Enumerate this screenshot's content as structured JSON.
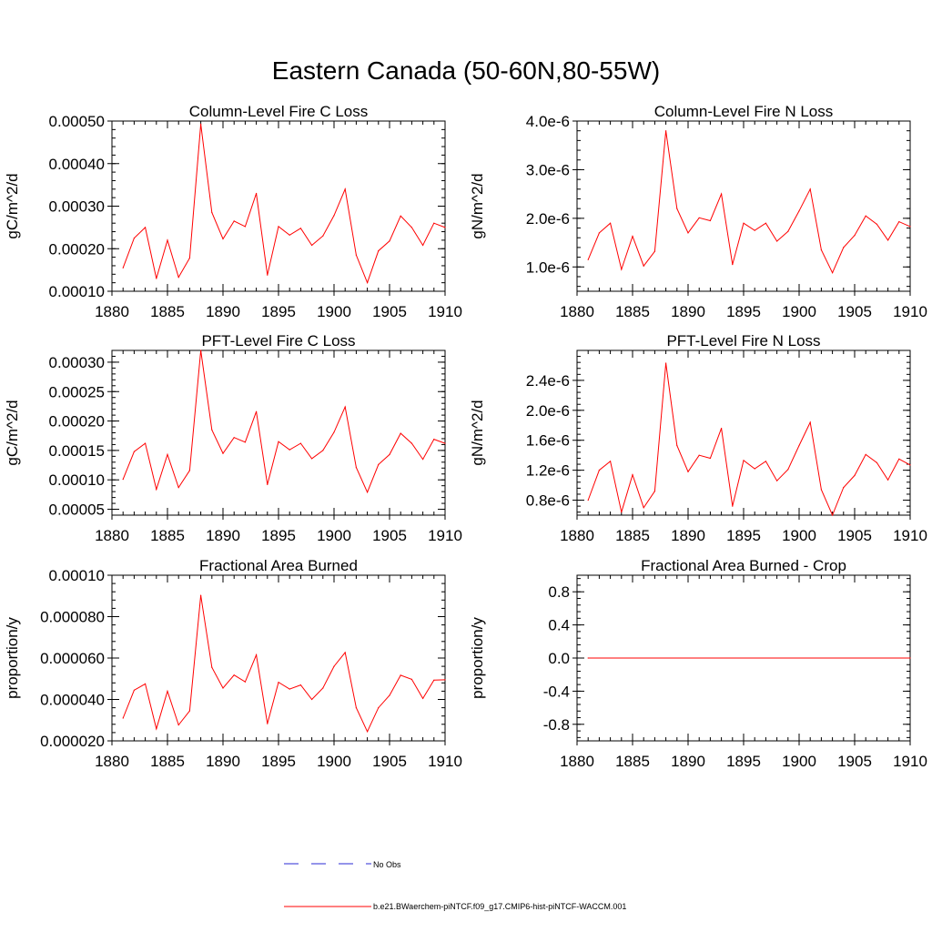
{
  "figure": {
    "title": "Eastern Canada (50-60N,80-55W)"
  },
  "colors": {
    "model": "#ff0000",
    "obs": "#2a2ad4",
    "axes": "#000000"
  },
  "legend": {
    "obs_label": "No Obs",
    "model_label": "b.e21.BWaerchem-piNTCF.f09_g17.CMIP6-hist-piNTCF-WACCM.001"
  },
  "chart_data": [
    {
      "type": "line",
      "title": "Column-Level Fire C Loss",
      "ylabel": "gC/m^2/d",
      "xlim": [
        1880,
        1910
      ],
      "ylim": [
        0.0001,
        0.0005
      ],
      "xticks": [
        1880,
        1885,
        1890,
        1895,
        1900,
        1905,
        1910
      ],
      "xtick_labels": [
        "1880",
        "1885",
        "1890",
        "1895",
        "1900",
        "1905",
        "1910"
      ],
      "yticks": [
        0.0001,
        0.0002,
        0.0003,
        0.0004,
        0.0005
      ],
      "ytick_labels": [
        "0.00010",
        "0.00020",
        "0.00030",
        "0.00040",
        "0.00050"
      ],
      "series": [
        {
          "x": [
            1881,
            1882,
            1883,
            1884,
            1885,
            1886,
            1887,
            1888,
            1889,
            1890,
            1891,
            1892,
            1893,
            1894,
            1895,
            1896,
            1897,
            1898,
            1899,
            1900,
            1901,
            1902,
            1903,
            1904,
            1905,
            1906,
            1907,
            1908,
            1909,
            1910
          ],
          "values": [
            0.000155,
            0.000225,
            0.00025,
            0.00013,
            0.00022,
            0.000133,
            0.000178,
            0.000493,
            0.000285,
            0.000223,
            0.000265,
            0.000252,
            0.00033,
            0.000138,
            0.000252,
            0.000232,
            0.000248,
            0.000208,
            0.00023,
            0.000278,
            0.00034,
            0.000185,
            0.00012,
            0.000195,
            0.000218,
            0.000277,
            0.00025,
            0.000208,
            0.00026,
            0.00025
          ]
        }
      ]
    },
    {
      "type": "line",
      "title": "Column-Level Fire N Loss",
      "ylabel": "gN/m^2/d",
      "xlim": [
        1880,
        1910
      ],
      "ylim": [
        5e-07,
        4e-06
      ],
      "xticks": [
        1880,
        1885,
        1890,
        1895,
        1900,
        1905,
        1910
      ],
      "xtick_labels": [
        "1880",
        "1885",
        "1890",
        "1895",
        "1900",
        "1905",
        "1910"
      ],
      "yticks": [
        1e-06,
        2e-06,
        3e-06,
        4e-06
      ],
      "ytick_labels": [
        "1.0e-6",
        "2.0e-6",
        "3.0e-6",
        "4.0e-6"
      ],
      "series": [
        {
          "x": [
            1881,
            1882,
            1883,
            1884,
            1885,
            1886,
            1887,
            1888,
            1889,
            1890,
            1891,
            1892,
            1893,
            1894,
            1895,
            1896,
            1897,
            1898,
            1899,
            1900,
            1901,
            1902,
            1903,
            1904,
            1905,
            1906,
            1907,
            1908,
            1909,
            1910
          ],
          "values": [
            1.15e-06,
            1.7e-06,
            1.9e-06,
            9.5e-07,
            1.63e-06,
            1.02e-06,
            1.32e-06,
            3.8e-06,
            2.2e-06,
            1.7e-06,
            2.01e-06,
            1.95e-06,
            2.5e-06,
            1.05e-06,
            1.9e-06,
            1.75e-06,
            1.9e-06,
            1.53e-06,
            1.73e-06,
            2.15e-06,
            2.6e-06,
            1.35e-06,
            8.8e-07,
            1.4e-06,
            1.65e-06,
            2.05e-06,
            1.88e-06,
            1.55e-06,
            1.93e-06,
            1.83e-06
          ]
        }
      ]
    },
    {
      "type": "line",
      "title": "PFT-Level Fire C Loss",
      "ylabel": "gC/m^2/d",
      "xlim": [
        1880,
        1910
      ],
      "ylim": [
        4e-05,
        0.00032
      ],
      "xticks": [
        1880,
        1885,
        1890,
        1895,
        1900,
        1905,
        1910
      ],
      "xtick_labels": [
        "1880",
        "1885",
        "1890",
        "1895",
        "1900",
        "1905",
        "1910"
      ],
      "yticks": [
        5e-05,
        0.0001,
        0.00015,
        0.0002,
        0.00025,
        0.0003
      ],
      "ytick_labels": [
        "0.00005",
        "0.00010",
        "0.00015",
        "0.00020",
        "0.00025",
        "0.00030"
      ],
      "series": [
        {
          "x": [
            1881,
            1882,
            1883,
            1884,
            1885,
            1886,
            1887,
            1888,
            1889,
            1890,
            1891,
            1892,
            1893,
            1894,
            1895,
            1896,
            1897,
            1898,
            1899,
            1900,
            1901,
            1902,
            1903,
            1904,
            1905,
            1906,
            1907,
            1908,
            1909,
            1910
          ],
          "values": [
            0.000101,
            0.000148,
            0.000162,
            8.4e-05,
            0.000143,
            8.7e-05,
            0.000116,
            0.00032,
            0.000185,
            0.000145,
            0.000172,
            0.000164,
            0.000216,
            9.2e-05,
            0.000165,
            0.000151,
            0.000162,
            0.000136,
            0.00015,
            0.000181,
            0.000224,
            0.000121,
            7.9e-05,
            0.000126,
            0.000143,
            0.000179,
            0.000162,
            0.000135,
            0.000169,
            0.000162
          ]
        }
      ]
    },
    {
      "type": "line",
      "title": "PFT-Level Fire N Loss",
      "ylabel": "gN/m^2/d",
      "xlim": [
        1880,
        1910
      ],
      "ylim": [
        6e-07,
        2.8e-06
      ],
      "xticks": [
        1880,
        1885,
        1890,
        1895,
        1900,
        1905,
        1910
      ],
      "xtick_labels": [
        "1880",
        "1885",
        "1890",
        "1895",
        "1900",
        "1905",
        "1910"
      ],
      "yticks": [
        8e-07,
        1.2e-06,
        1.6e-06,
        2e-06,
        2.4e-06
      ],
      "ytick_labels": [
        "0.8e-6",
        "1.2e-6",
        "1.6e-6",
        "2.0e-6",
        "2.4e-6"
      ],
      "series": [
        {
          "x": [
            1881,
            1882,
            1883,
            1884,
            1885,
            1886,
            1887,
            1888,
            1889,
            1890,
            1891,
            1892,
            1893,
            1894,
            1895,
            1896,
            1897,
            1898,
            1899,
            1900,
            1901,
            1902,
            1903,
            1904,
            1905,
            1906,
            1907,
            1908,
            1909,
            1910
          ],
          "values": [
            8e-07,
            1.2e-06,
            1.32e-06,
            6.4e-07,
            1.14e-06,
            7e-07,
            9.2e-07,
            2.63e-06,
            1.53e-06,
            1.18e-06,
            1.4e-06,
            1.36e-06,
            1.76e-06,
            7.2e-07,
            1.33e-06,
            1.22e-06,
            1.32e-06,
            1.06e-06,
            1.21e-06,
            1.53e-06,
            1.84e-06,
            9.4e-07,
            6e-07,
            9.7e-07,
            1.13e-06,
            1.41e-06,
            1.3e-06,
            1.07e-06,
            1.35e-06,
            1.27e-06
          ]
        }
      ]
    },
    {
      "type": "line",
      "title": "Fractional Area Burned",
      "ylabel": "proportion/y",
      "xlim": [
        1880,
        1910
      ],
      "ylim": [
        2e-05,
        0.0001
      ],
      "xticks": [
        1880,
        1885,
        1890,
        1895,
        1900,
        1905,
        1910
      ],
      "xtick_labels": [
        "1880",
        "1885",
        "1890",
        "1895",
        "1900",
        "1905",
        "1910"
      ],
      "yticks": [
        2e-05,
        4e-05,
        6e-05,
        8e-05,
        0.0001
      ],
      "ytick_labels": [
        "0.000020",
        "0.000040",
        "0.000060",
        "0.000080",
        "0.00010"
      ],
      "series": [
        {
          "x": [
            1881,
            1882,
            1883,
            1884,
            1885,
            1886,
            1887,
            1888,
            1889,
            1890,
            1891,
            1892,
            1893,
            1894,
            1895,
            1896,
            1897,
            1898,
            1899,
            1900,
            1901,
            1902,
            1903,
            1904,
            1905,
            1906,
            1907,
            1908,
            1909,
            1910
          ],
          "values": [
            3.1e-05,
            4.45e-05,
            4.75e-05,
            2.58e-05,
            4.4e-05,
            2.77e-05,
            3.45e-05,
            9.03e-05,
            5.55e-05,
            4.55e-05,
            5.18e-05,
            4.85e-05,
            6.15e-05,
            2.83e-05,
            4.83e-05,
            4.5e-05,
            4.7e-05,
            4e-05,
            4.55e-05,
            5.6e-05,
            6.27e-05,
            3.6e-05,
            2.45e-05,
            3.6e-05,
            4.2e-05,
            5.17e-05,
            4.97e-05,
            4.05e-05,
            4.93e-05,
            4.95e-05
          ]
        }
      ]
    },
    {
      "type": "line",
      "title": "Fractional Area Burned - Crop",
      "ylabel": "proportion/y",
      "xlim": [
        1880,
        1910
      ],
      "ylim": [
        -1.0,
        1.0
      ],
      "xticks": [
        1880,
        1885,
        1890,
        1895,
        1900,
        1905,
        1910
      ],
      "xtick_labels": [
        "1880",
        "1885",
        "1890",
        "1895",
        "1900",
        "1905",
        "1910"
      ],
      "yticks": [
        -0.8,
        -0.4,
        0.0,
        0.4,
        0.8
      ],
      "ytick_labels": [
        "-0.8",
        "-0.4",
        "0.0",
        "0.4",
        "0.8"
      ],
      "series": [
        {
          "x": [
            1881,
            1910
          ],
          "values": [
            0,
            0
          ]
        }
      ]
    }
  ]
}
